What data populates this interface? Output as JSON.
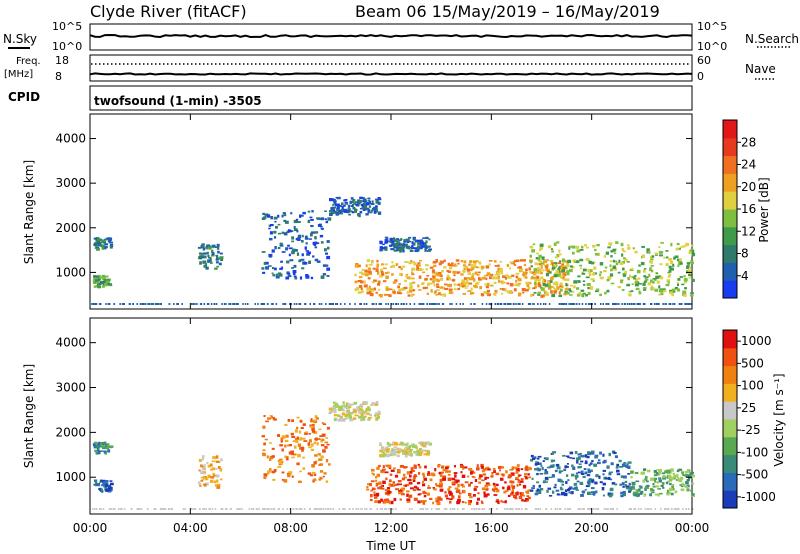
{
  "header": {
    "title": "Clyde River (fitACF)",
    "beam_info": "Beam 06  15/May/2019 – 16/May/2019"
  },
  "summary_panels": {
    "nsky_label": "N.Sky",
    "nsky_ticks": [
      "10^5",
      "10^0"
    ],
    "nsearch_label": "N.Search",
    "nsearch_ticks": [
      "10^5",
      "10^0"
    ],
    "freq_label": "Freq.",
    "freq_unit": "[MHz]",
    "freq_ticks": [
      "18",
      "8"
    ],
    "nave_label": "Nave",
    "nave_ticks": [
      "60",
      "0"
    ],
    "cpid_label": "CPID",
    "cpid_text": "twofsound (1-min) -3505"
  },
  "chart_data": [
    {
      "type": "heatmap",
      "panel": "power",
      "ylabel": "Slant Range [km]",
      "yticks": [
        1000,
        2000,
        3000,
        4000
      ],
      "ylim": [
        180,
        4550
      ],
      "xlim": [
        0,
        24
      ],
      "xticks": [
        "00:00",
        "04:00",
        "08:00",
        "12:00",
        "16:00",
        "20:00",
        "00:00"
      ],
      "colorbar": {
        "label": "Power [dB]",
        "ticks": [
          "4",
          "8",
          "12",
          "16",
          "20",
          "24",
          "28"
        ],
        "colors": [
          "#1a3cf0",
          "#1f5fb0",
          "#2f7a6a",
          "#3f9a4a",
          "#7fbf3f",
          "#e0d040",
          "#f0a020",
          "#f07020",
          "#e83820",
          "#e01818"
        ]
      },
      "description_regions": [
        {
          "t0": 0.1,
          "t1": 0.8,
          "r0": 700,
          "r1": 950,
          "level": 3
        },
        {
          "t0": 0.1,
          "t1": 0.8,
          "r0": 1550,
          "r1": 1800,
          "level": 2
        },
        {
          "t0": 4.3,
          "t1": 5.2,
          "r0": 1100,
          "r1": 1700,
          "level": 2
        },
        {
          "t0": 6.8,
          "t1": 9.5,
          "r0": 900,
          "r1": 2400,
          "level": 1
        },
        {
          "t0": 9.5,
          "t1": 11.5,
          "r0": 2300,
          "r1": 2700,
          "level": 1
        },
        {
          "t0": 11.5,
          "t1": 13.5,
          "r0": 1500,
          "r1": 1800,
          "level": 1
        },
        {
          "t0": 10.5,
          "t1": 19.0,
          "r0": 500,
          "r1": 1300,
          "level": 6
        },
        {
          "t0": 17.5,
          "t1": 24.0,
          "r0": 500,
          "r1": 1700,
          "level": 4
        }
      ]
    },
    {
      "type": "heatmap",
      "panel": "velocity",
      "ylabel": "Slant Range [km]",
      "yticks": [
        1000,
        2000,
        3000,
        4000
      ],
      "ylim": [
        180,
        4550
      ],
      "xlim": [
        0,
        24
      ],
      "xticks": [
        "00:00",
        "04:00",
        "08:00",
        "12:00",
        "16:00",
        "20:00",
        "00:00"
      ],
      "xlabel": "Time UT",
      "colorbar": {
        "label": "Velocity [m s⁻¹]",
        "ticks": [
          "1000",
          "500",
          "100",
          "25",
          "-25",
          "-100",
          "-500",
          "-1000"
        ],
        "colors": [
          "#1a3cb8",
          "#2a6ab8",
          "#3a8a7a",
          "#5aa850",
          "#a0d060",
          "#c8c8c8",
          "#f0b020",
          "#f08010",
          "#f05010",
          "#e01010"
        ]
      },
      "description_regions": [
        {
          "t0": 0.1,
          "t1": 0.8,
          "r0": 700,
          "r1": 950,
          "level": 1
        },
        {
          "t0": 0.1,
          "t1": 0.8,
          "r0": 1550,
          "r1": 1800,
          "level": 2
        },
        {
          "t0": 4.3,
          "t1": 5.2,
          "r0": 800,
          "r1": 1500,
          "level": 6
        },
        {
          "t0": 6.8,
          "t1": 9.5,
          "r0": 900,
          "r1": 2400,
          "level": 7
        },
        {
          "t0": 9.5,
          "t1": 11.5,
          "r0": 2300,
          "r1": 2700,
          "level": 5
        },
        {
          "t0": 11.5,
          "t1": 13.5,
          "r0": 1500,
          "r1": 1800,
          "level": 5
        },
        {
          "t0": 11.0,
          "t1": 17.5,
          "r0": 450,
          "r1": 1300,
          "level": 8
        },
        {
          "t0": 17.5,
          "t1": 21.5,
          "r0": 600,
          "r1": 1600,
          "level": 1
        },
        {
          "t0": 21.5,
          "t1": 24.0,
          "r0": 600,
          "r1": 1200,
          "level": 3
        }
      ]
    }
  ]
}
